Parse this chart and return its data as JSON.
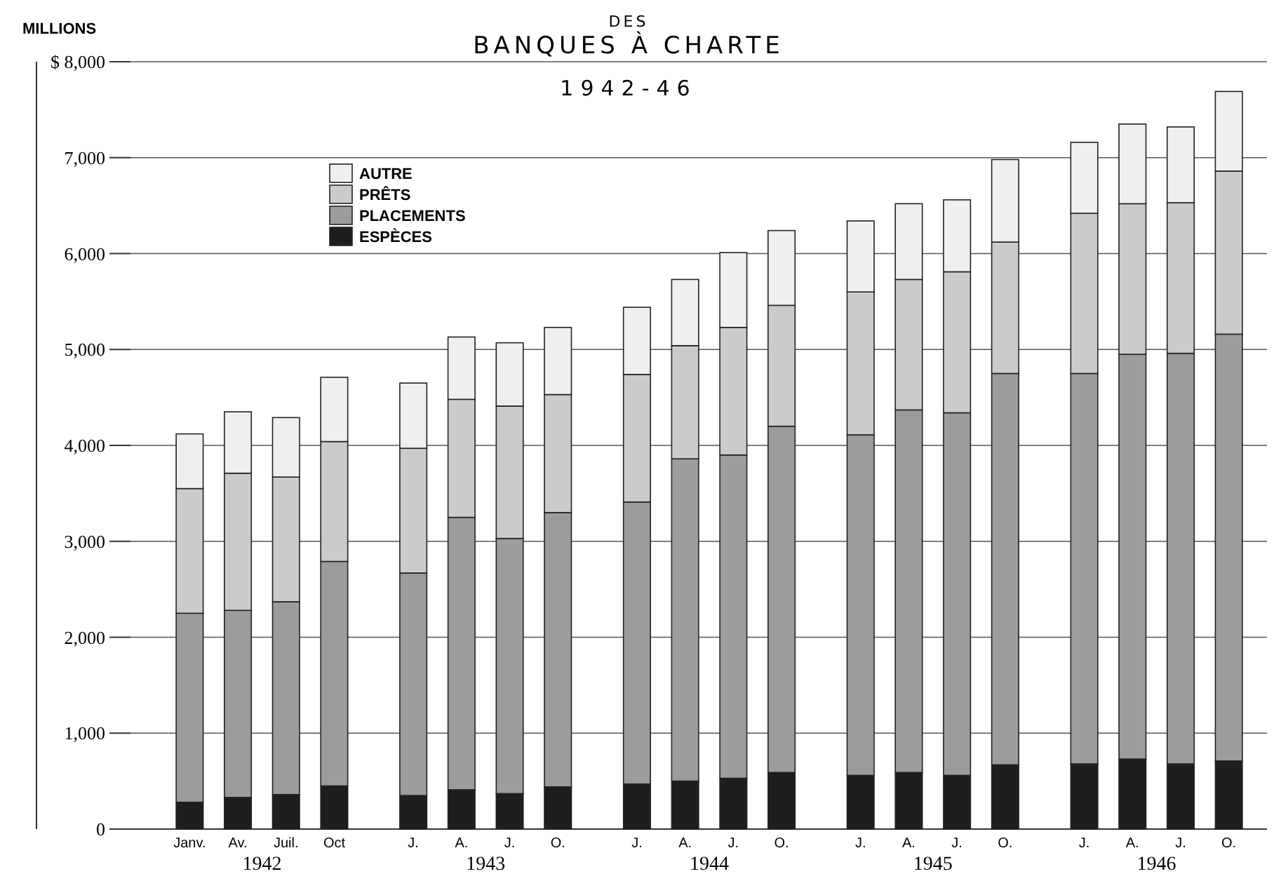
{
  "chart_data": {
    "type": "bar",
    "title": "DES\nBANQUES À CHARTE",
    "subtitle": "1942-46",
    "ylabel": "MILLIONS",
    "categories": [
      "Janv.",
      "Av.",
      "Juil.",
      "Oct",
      "J.",
      "A.",
      "J.",
      "O.",
      "J.",
      "A.",
      "J.",
      "O.",
      "J.",
      "A.",
      "J.",
      "O.",
      "J.",
      "A.",
      "J.",
      "O."
    ],
    "stacked": true,
    "series": [
      {
        "name": "ESPÈCES",
        "color": "#1e1e1e",
        "values": [
          280,
          330,
          360,
          450,
          350,
          410,
          370,
          440,
          470,
          500,
          530,
          590,
          560,
          590,
          560,
          670,
          680,
          730,
          680,
          710
        ]
      },
      {
        "name": "PLACEMENTS",
        "color": "#9c9c9c",
        "values": [
          1970,
          1950,
          2010,
          2340,
          2320,
          2840,
          2660,
          2860,
          2940,
          3360,
          3370,
          3610,
          3550,
          3780,
          3780,
          4080,
          4070,
          4220,
          4280,
          4450
        ]
      },
      {
        "name": "PRÊTS",
        "color": "#cbcbcb",
        "values": [
          1300,
          1430,
          1300,
          1250,
          1300,
          1230,
          1380,
          1230,
          1330,
          1180,
          1330,
          1260,
          1490,
          1360,
          1470,
          1370,
          1670,
          1570,
          1570,
          1700
        ]
      },
      {
        "name": "AUTRE",
        "color": "#efefef",
        "values": [
          570,
          640,
          620,
          670,
          680,
          650,
          660,
          700,
          700,
          690,
          780,
          780,
          740,
          790,
          750,
          860,
          740,
          830,
          790,
          830
        ]
      }
    ],
    "ylim": [
      0,
      8000
    ],
    "yticks": [
      0,
      {
        "value": 1000,
        "label": "1,000"
      },
      {
        "value": 2000,
        "label": "2,000"
      },
      {
        "value": 3000,
        "label": "3,000"
      },
      {
        "value": 4000,
        "label": "4,000"
      },
      {
        "value": 5000,
        "label": "5,000"
      },
      {
        "value": 6000,
        "label": "6,000"
      },
      {
        "value": 7000,
        "label": "7,000"
      },
      {
        "value": 8000,
        "label": "$ 8,000"
      }
    ],
    "grid": "y",
    "legend": "top left",
    "annotations": [
      "1942",
      "1943",
      "1944",
      "1945",
      "1946"
    ]
  }
}
